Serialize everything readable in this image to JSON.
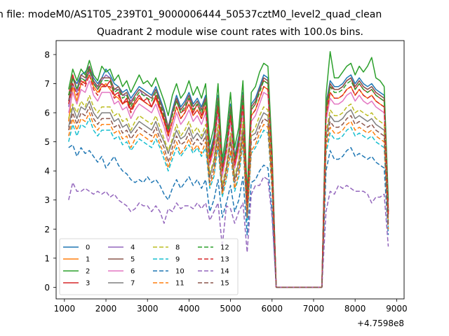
{
  "figure": {
    "suptitle": "n file: modeM0/AS1T05_239T01_9000006444_50537cztM0_level2_quad_clean"
  },
  "chart_data": {
    "type": "line",
    "title": "Quadrant 2 module wise count rates with 100.0s bins.",
    "xlabel": "",
    "ylabel": "",
    "x_offset_label": "+4.7598e8",
    "xlim": [
      800,
      9180
    ],
    "ylim": [
      -0.4,
      8.48
    ],
    "xticks": [
      1000,
      2000,
      3000,
      4000,
      5000,
      6000,
      7000,
      8000,
      9000
    ],
    "yticks": [
      0,
      1,
      2,
      3,
      4,
      5,
      6,
      7,
      8
    ],
    "grid": false,
    "legend_position": "lower-left",
    "x": [
      1100,
      1200,
      1300,
      1400,
      1500,
      1600,
      1700,
      1800,
      1900,
      2000,
      2100,
      2200,
      2300,
      2400,
      2500,
      2600,
      2700,
      2800,
      2900,
      3000,
      3100,
      3200,
      3300,
      3400,
      3500,
      3600,
      3700,
      3800,
      3900,
      4000,
      4100,
      4200,
      4300,
      4400,
      4500,
      4600,
      4700,
      4800,
      4900,
      5000,
      5100,
      5200,
      5300,
      5400,
      5500,
      5600,
      5700,
      5800,
      5900,
      6000,
      6100,
      7200,
      7300,
      7400,
      7500,
      7600,
      7700,
      7800,
      7900,
      8000,
      8100,
      8200,
      8300,
      8400,
      8500,
      8600,
      8700,
      8800
    ],
    "series": [
      {
        "name": "0",
        "color": "#1f77b4",
        "dash": "",
        "values": [
          6.4,
          7.2,
          7.0,
          7.3,
          7.4,
          7.6,
          7.2,
          7.0,
          7.2,
          7.5,
          7.3,
          7.0,
          6.9,
          6.7,
          6.8,
          6.5,
          6.7,
          6.9,
          6.8,
          6.7,
          6.6,
          6.9,
          6.5,
          6.1,
          5.5,
          6.1,
          6.6,
          6.2,
          6.4,
          6.7,
          6.3,
          6.5,
          6.2,
          6.6,
          4.6,
          5.2,
          6.6,
          4.2,
          5.0,
          6.3,
          4.5,
          5.2,
          6.7,
          3.0,
          6.3,
          6.5,
          6.9,
          7.3,
          7.2,
          4.5,
          0.0,
          0.0,
          6.3,
          7.1,
          6.9,
          6.9,
          7.0,
          7.2,
          7.3,
          7.0,
          7.2,
          7.0,
          6.9,
          7.0,
          6.8,
          6.7,
          6.6,
          2.7
        ]
      },
      {
        "name": "1",
        "color": "#ff7f0e",
        "dash": "",
        "values": [
          5.7,
          6.9,
          6.4,
          7.0,
          7.1,
          7.3,
          6.9,
          6.7,
          6.9,
          7.0,
          6.8,
          6.6,
          6.5,
          6.3,
          6.4,
          6.1,
          6.3,
          6.5,
          6.4,
          6.3,
          6.2,
          6.5,
          6.1,
          5.7,
          5.2,
          5.7,
          6.2,
          5.8,
          6.0,
          6.3,
          5.9,
          6.1,
          5.8,
          6.2,
          4.3,
          4.9,
          6.2,
          3.9,
          4.7,
          5.9,
          4.2,
          4.9,
          6.3,
          2.8,
          5.9,
          6.1,
          6.5,
          6.9,
          6.8,
          4.2,
          0.0,
          0.0,
          5.9,
          6.7,
          6.5,
          6.5,
          6.6,
          6.8,
          6.9,
          6.6,
          6.8,
          6.6,
          6.5,
          6.6,
          6.4,
          6.3,
          6.2,
          2.5
        ]
      },
      {
        "name": "2",
        "color": "#2ca02c",
        "dash": "",
        "values": [
          6.8,
          7.5,
          7.1,
          7.5,
          7.3,
          7.8,
          7.3,
          7.1,
          7.6,
          7.4,
          7.5,
          7.1,
          7.3,
          6.9,
          7.1,
          6.7,
          7.0,
          7.3,
          7.0,
          7.1,
          6.9,
          7.2,
          6.8,
          6.4,
          5.9,
          6.6,
          7.0,
          6.5,
          6.7,
          7.1,
          6.6,
          6.9,
          6.5,
          7.0,
          4.9,
          5.5,
          7.0,
          4.4,
          5.3,
          6.7,
          4.8,
          5.5,
          7.1,
          3.2,
          6.7,
          6.9,
          7.4,
          7.7,
          7.6,
          4.7,
          0.0,
          0.0,
          6.6,
          8.1,
          7.2,
          7.2,
          7.4,
          7.6,
          7.7,
          7.3,
          7.6,
          7.4,
          7.6,
          7.9,
          7.2,
          7.1,
          6.9,
          3.0
        ]
      },
      {
        "name": "3",
        "color": "#d62728",
        "dash": "",
        "values": [
          6.6,
          7.3,
          6.8,
          7.1,
          7.0,
          7.5,
          7.0,
          6.8,
          7.0,
          6.9,
          7.1,
          6.6,
          6.7,
          6.3,
          6.5,
          6.1,
          6.4,
          6.6,
          6.4,
          6.5,
          6.2,
          6.6,
          6.2,
          5.8,
          5.3,
          6.0,
          6.4,
          6.0,
          6.1,
          6.5,
          6.0,
          6.3,
          5.9,
          6.4,
          4.4,
          5.0,
          6.4,
          4.0,
          4.8,
          6.1,
          4.3,
          5.0,
          6.5,
          2.9,
          6.1,
          6.3,
          6.8,
          7.1,
          7.0,
          4.3,
          0.0,
          0.0,
          6.1,
          6.9,
          6.8,
          6.8,
          6.9,
          7.1,
          7.2,
          6.8,
          7.0,
          6.8,
          6.7,
          6.8,
          6.6,
          6.5,
          6.4,
          2.6
        ]
      },
      {
        "name": "4",
        "color": "#9467bd",
        "dash": "",
        "values": [
          6.2,
          7.0,
          6.7,
          7.2,
          7.1,
          7.4,
          7.1,
          6.8,
          7.1,
          7.3,
          7.2,
          6.8,
          6.8,
          6.6,
          6.6,
          6.4,
          6.6,
          6.8,
          6.6,
          6.6,
          6.5,
          6.8,
          6.4,
          6.0,
          5.4,
          6.0,
          6.5,
          6.1,
          6.3,
          6.6,
          6.2,
          6.4,
          6.1,
          6.5,
          4.5,
          5.1,
          6.5,
          4.1,
          4.9,
          6.2,
          4.4,
          5.1,
          6.6,
          3.0,
          6.2,
          6.4,
          6.8,
          7.2,
          7.1,
          4.4,
          0.0,
          0.0,
          6.2,
          7.0,
          6.8,
          6.8,
          6.9,
          7.1,
          7.2,
          6.9,
          7.1,
          6.9,
          6.8,
          6.9,
          6.7,
          6.6,
          6.5,
          2.6
        ]
      },
      {
        "name": "5",
        "color": "#8c564b",
        "dash": "",
        "values": [
          6.4,
          7.2,
          6.8,
          7.3,
          7.2,
          7.6,
          7.1,
          6.9,
          7.2,
          7.2,
          7.2,
          6.8,
          6.9,
          6.6,
          6.7,
          6.3,
          6.6,
          6.8,
          6.7,
          6.6,
          6.5,
          6.8,
          6.4,
          6.0,
          5.5,
          6.0,
          6.5,
          6.1,
          6.3,
          6.6,
          6.2,
          6.4,
          6.1,
          6.5,
          4.5,
          5.1,
          6.5,
          4.1,
          4.9,
          6.2,
          4.4,
          5.1,
          6.6,
          3.0,
          6.2,
          6.4,
          6.8,
          7.2,
          7.1,
          4.4,
          0.0,
          0.0,
          6.2,
          7.0,
          6.8,
          6.8,
          6.9,
          7.1,
          7.2,
          6.9,
          7.1,
          6.9,
          6.8,
          6.9,
          6.7,
          6.6,
          6.5,
          2.6
        ]
      },
      {
        "name": "6",
        "color": "#e377c2",
        "dash": "",
        "values": [
          6.0,
          6.7,
          6.3,
          6.8,
          6.7,
          7.1,
          6.6,
          6.4,
          6.7,
          6.7,
          6.7,
          6.3,
          6.4,
          6.1,
          6.2,
          5.8,
          6.1,
          6.3,
          6.2,
          6.1,
          6.0,
          6.3,
          5.9,
          5.5,
          5.0,
          5.5,
          6.0,
          5.6,
          5.8,
          6.1,
          5.7,
          5.9,
          5.6,
          6.0,
          4.2,
          4.7,
          6.0,
          3.8,
          4.6,
          5.7,
          4.1,
          4.7,
          6.1,
          2.8,
          5.7,
          5.9,
          6.3,
          6.7,
          6.6,
          4.1,
          0.0,
          0.0,
          5.7,
          6.5,
          6.3,
          6.3,
          6.4,
          6.6,
          6.7,
          6.4,
          6.6,
          6.4,
          6.3,
          6.4,
          6.2,
          6.1,
          6.0,
          2.4
        ]
      },
      {
        "name": "7",
        "color": "#7f7f7f",
        "dash": "",
        "values": [
          5.5,
          6.2,
          5.8,
          6.2,
          6.1,
          6.4,
          6.0,
          5.8,
          6.0,
          6.0,
          6.0,
          5.7,
          5.8,
          5.5,
          5.6,
          5.3,
          5.5,
          5.7,
          5.6,
          5.5,
          5.4,
          5.7,
          5.3,
          5.0,
          4.6,
          5.0,
          5.4,
          5.1,
          5.2,
          5.5,
          5.1,
          5.3,
          5.1,
          5.4,
          3.8,
          4.3,
          5.4,
          3.4,
          4.1,
          5.2,
          3.7,
          4.3,
          5.5,
          2.5,
          5.2,
          5.3,
          5.7,
          6.0,
          5.9,
          3.7,
          0.0,
          0.0,
          5.2,
          5.9,
          5.7,
          5.7,
          5.8,
          6.0,
          6.1,
          5.8,
          5.9,
          5.8,
          5.7,
          5.8,
          5.6,
          5.5,
          5.4,
          2.2
        ]
      },
      {
        "name": "8",
        "color": "#bcbd22",
        "dash": "6,3",
        "values": [
          5.8,
          6.3,
          6.0,
          6.4,
          6.2,
          6.6,
          6.2,
          6.0,
          6.2,
          6.2,
          6.2,
          5.9,
          6.0,
          5.7,
          5.8,
          5.4,
          5.7,
          5.9,
          5.8,
          5.7,
          5.6,
          5.9,
          5.5,
          5.1,
          4.7,
          5.1,
          5.6,
          5.2,
          5.4,
          5.7,
          5.3,
          5.5,
          5.2,
          5.6,
          3.9,
          4.4,
          5.6,
          3.5,
          4.2,
          5.3,
          3.8,
          4.4,
          5.7,
          2.6,
          5.3,
          5.5,
          5.9,
          6.2,
          6.1,
          3.8,
          0.0,
          0.0,
          5.3,
          6.1,
          5.9,
          5.9,
          6.0,
          6.2,
          6.3,
          6.0,
          6.1,
          6.0,
          5.9,
          6.0,
          5.8,
          5.7,
          5.6,
          2.3
        ]
      },
      {
        "name": "9",
        "color": "#17becf",
        "dash": "6,3",
        "values": [
          5.0,
          5.6,
          5.2,
          5.6,
          5.5,
          5.8,
          5.4,
          5.2,
          5.4,
          5.4,
          5.4,
          5.1,
          5.2,
          4.9,
          5.0,
          4.7,
          4.9,
          5.1,
          5.0,
          4.9,
          4.8,
          5.1,
          4.8,
          4.4,
          4.0,
          4.4,
          4.8,
          4.5,
          4.7,
          4.9,
          4.6,
          4.8,
          4.5,
          4.8,
          3.4,
          3.8,
          4.8,
          3.1,
          3.7,
          4.6,
          3.3,
          3.8,
          4.9,
          2.3,
          4.6,
          4.8,
          5.1,
          5.4,
          5.3,
          3.3,
          0.0,
          0.0,
          4.6,
          5.3,
          5.1,
          5.1,
          5.2,
          5.4,
          5.5,
          5.2,
          5.3,
          5.2,
          5.1,
          5.2,
          5.0,
          4.9,
          4.8,
          2.0
        ]
      },
      {
        "name": "10",
        "color": "#1f77b4",
        "dash": "6,3",
        "values": [
          4.8,
          4.9,
          4.5,
          4.8,
          4.6,
          4.7,
          4.5,
          4.3,
          4.5,
          4.1,
          4.3,
          4.5,
          4.2,
          4.0,
          3.9,
          3.7,
          3.6,
          3.7,
          3.6,
          3.8,
          3.6,
          3.7,
          3.5,
          3.2,
          3.0,
          3.4,
          3.7,
          3.4,
          3.6,
          3.8,
          3.5,
          3.7,
          3.4,
          3.7,
          2.6,
          3.0,
          3.7,
          2.4,
          2.9,
          3.5,
          2.6,
          3.0,
          3.8,
          1.8,
          3.6,
          3.7,
          4.0,
          4.2,
          4.1,
          2.6,
          0.0,
          0.0,
          4.0,
          4.7,
          4.4,
          4.4,
          4.5,
          4.7,
          4.8,
          4.5,
          4.6,
          4.5,
          4.4,
          4.5,
          4.3,
          4.2,
          4.1,
          1.8
        ]
      },
      {
        "name": "11",
        "color": "#ff7f0e",
        "dash": "6,3",
        "values": [
          5.2,
          5.8,
          5.4,
          5.8,
          5.7,
          6.0,
          5.6,
          5.4,
          5.6,
          5.6,
          5.6,
          5.3,
          5.4,
          5.1,
          5.2,
          4.8,
          5.1,
          5.3,
          5.2,
          5.1,
          5.0,
          5.3,
          4.9,
          4.6,
          4.1,
          4.6,
          5.0,
          4.6,
          4.8,
          5.1,
          4.7,
          4.9,
          4.6,
          5.0,
          3.5,
          3.9,
          5.0,
          3.2,
          3.8,
          4.7,
          3.4,
          3.9,
          5.1,
          2.4,
          4.7,
          4.9,
          5.3,
          5.6,
          5.5,
          3.4,
          0.0,
          0.0,
          4.8,
          5.5,
          5.3,
          5.3,
          5.4,
          5.6,
          5.7,
          5.4,
          5.5,
          5.4,
          5.3,
          5.4,
          5.2,
          5.1,
          5.0,
          2.0
        ]
      },
      {
        "name": "12",
        "color": "#2ca02c",
        "dash": "6,3",
        "values": [
          6.6,
          7.2,
          6.8,
          7.2,
          7.1,
          7.5,
          7.0,
          6.8,
          7.1,
          7.1,
          7.1,
          6.7,
          6.8,
          6.5,
          6.6,
          6.2,
          6.5,
          6.7,
          6.6,
          6.5,
          6.4,
          6.7,
          6.3,
          5.9,
          5.4,
          5.9,
          6.4,
          6.0,
          6.2,
          6.5,
          6.1,
          6.3,
          6.0,
          6.4,
          4.5,
          5.0,
          6.4,
          4.1,
          4.9,
          6.1,
          4.4,
          5.0,
          6.5,
          3.0,
          6.1,
          6.3,
          6.7,
          7.1,
          7.0,
          4.4,
          0.0,
          0.0,
          6.1,
          6.9,
          6.7,
          6.7,
          6.8,
          7.0,
          7.1,
          6.8,
          7.0,
          6.8,
          6.7,
          6.8,
          6.6,
          6.5,
          6.4,
          2.6
        ]
      },
      {
        "name": "13",
        "color": "#d62728",
        "dash": "6,3",
        "values": [
          6.3,
          7.0,
          6.6,
          7.0,
          6.9,
          7.3,
          6.8,
          6.6,
          6.9,
          6.9,
          6.9,
          6.5,
          6.6,
          6.3,
          6.4,
          6.0,
          6.3,
          6.5,
          6.4,
          6.3,
          6.2,
          6.5,
          6.1,
          5.7,
          5.2,
          5.7,
          6.2,
          5.8,
          6.0,
          6.3,
          5.9,
          6.1,
          5.8,
          6.2,
          4.3,
          4.9,
          6.2,
          4.0,
          4.7,
          5.9,
          4.2,
          4.9,
          6.3,
          2.9,
          5.9,
          6.1,
          6.5,
          6.9,
          6.8,
          4.2,
          0.0,
          0.0,
          5.9,
          6.7,
          6.5,
          6.5,
          6.6,
          6.8,
          6.9,
          6.6,
          6.8,
          6.6,
          6.5,
          6.6,
          6.4,
          6.3,
          6.2,
          2.5
        ]
      },
      {
        "name": "14",
        "color": "#9467bd",
        "dash": "6,3",
        "values": [
          3.0,
          3.6,
          3.3,
          3.3,
          3.4,
          3.3,
          3.2,
          3.3,
          3.2,
          3.3,
          3.1,
          3.2,
          3.0,
          2.9,
          2.8,
          2.6,
          2.7,
          2.9,
          2.8,
          2.8,
          2.6,
          2.8,
          2.6,
          2.2,
          2.7,
          2.6,
          2.9,
          2.7,
          2.8,
          2.8,
          2.7,
          2.9,
          2.7,
          2.9,
          2.3,
          2.6,
          2.9,
          1.4,
          2.8,
          2.7,
          2.2,
          2.6,
          2.9,
          1.2,
          3.2,
          3.5,
          3.5,
          3.8,
          3.7,
          2.4,
          0.0,
          0.0,
          2.6,
          3.3,
          3.2,
          3.5,
          3.4,
          3.5,
          3.4,
          3.3,
          3.3,
          3.3,
          3.2,
          2.9,
          3.1,
          3.1,
          3.2,
          1.4
        ]
      },
      {
        "name": "15",
        "color": "#8c564b",
        "dash": "6,3",
        "values": [
          5.4,
          6.0,
          5.6,
          6.0,
          5.9,
          6.2,
          5.8,
          5.6,
          5.8,
          5.8,
          5.8,
          5.5,
          5.6,
          5.3,
          5.4,
          5.1,
          5.3,
          5.5,
          5.4,
          5.3,
          5.2,
          5.5,
          5.1,
          4.8,
          4.3,
          4.8,
          5.2,
          4.9,
          5.0,
          5.3,
          4.9,
          5.1,
          4.9,
          5.2,
          3.6,
          4.1,
          5.2,
          3.3,
          4.0,
          5.0,
          3.6,
          4.1,
          5.3,
          2.4,
          5.0,
          5.1,
          5.5,
          5.8,
          5.7,
          3.6,
          0.0,
          0.0,
          5.0,
          5.7,
          5.5,
          5.5,
          5.6,
          5.8,
          5.9,
          5.6,
          5.7,
          5.6,
          5.5,
          5.6,
          5.4,
          5.3,
          5.2,
          2.1
        ]
      }
    ]
  }
}
